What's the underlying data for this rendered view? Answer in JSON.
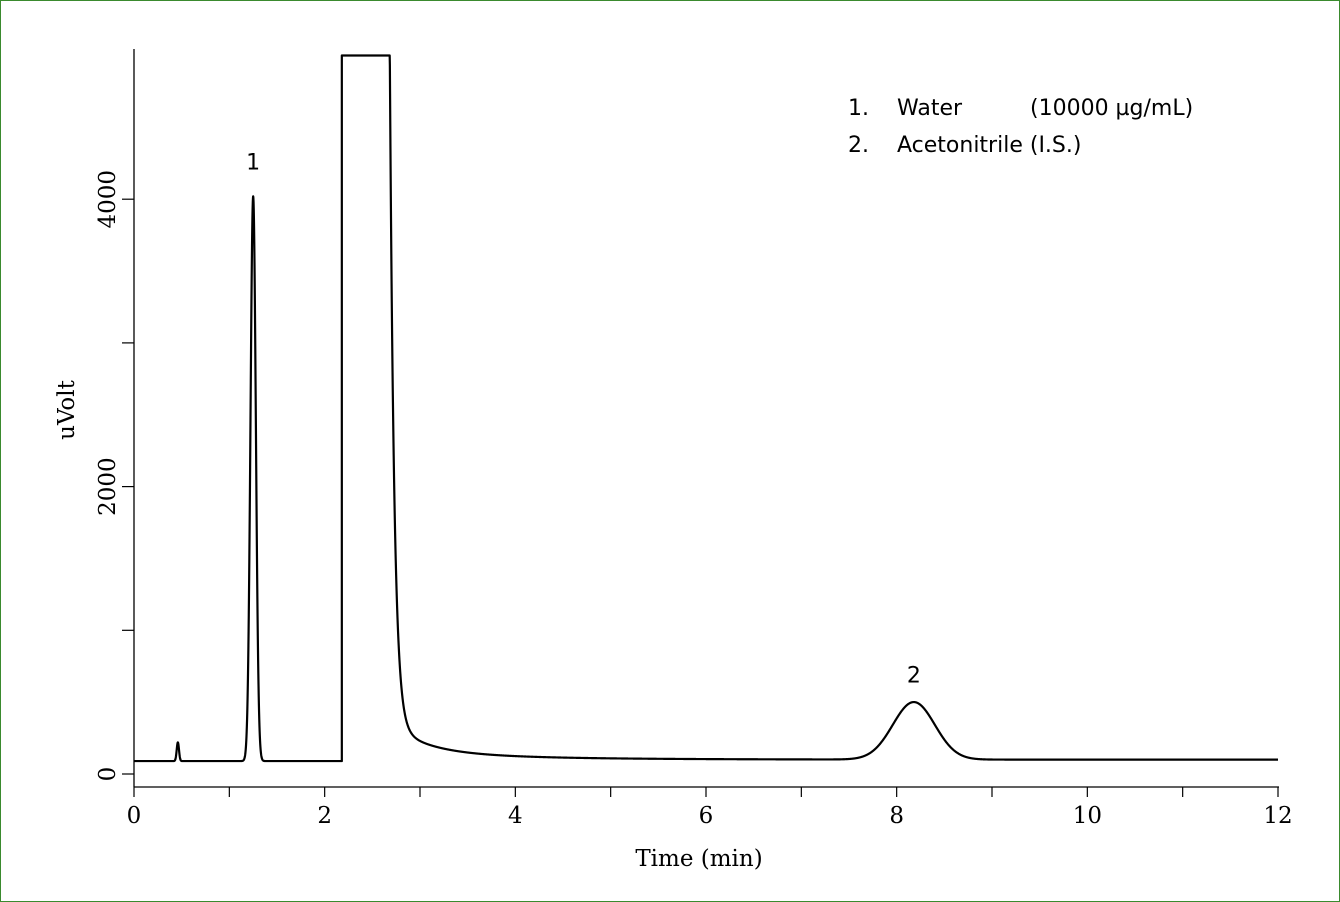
{
  "colors": {
    "frame": "#3a8a2e",
    "trace": "#000000",
    "background": "#ffffff"
  },
  "chart_data": {
    "type": "line",
    "title": "",
    "xlabel": "Time (min)",
    "ylabel": "uVolt",
    "xlim": [
      0,
      12
    ],
    "ylim": [
      -150,
      5000
    ],
    "x_ticks_labeled": [
      "0",
      "2",
      "4",
      "6",
      "8",
      "10",
      "12"
    ],
    "x_ticks_labeled_values": [
      0,
      2,
      4,
      6,
      8,
      10,
      12
    ],
    "x_ticks_minor_values": [
      1,
      3,
      5,
      7,
      9,
      11
    ],
    "y_ticks_labeled": [
      "0",
      "2000",
      "4000"
    ],
    "y_ticks_labeled_values": [
      0,
      2000,
      4000
    ],
    "y_ticks_minor_values": [
      1000,
      3000
    ],
    "grid": false,
    "legend_position": "top-right",
    "legend": [
      {
        "number": "1.",
        "name": "Water",
        "detail": "(10000 µg/mL)"
      },
      {
        "number": "2.",
        "name": "Acetonitrile (I.S.)",
        "detail": ""
      }
    ],
    "peak_labels": [
      {
        "label": "1",
        "x": 1.25,
        "y": 4150
      },
      {
        "label": "2",
        "x": 8.18,
        "y": 580
      }
    ],
    "series": [
      {
        "baseline": 90,
        "tail_baseline": 100,
        "peaks": [
          {
            "center": 0.46,
            "height": 130,
            "width": 0.012
          },
          {
            "center": 1.25,
            "height": 3930,
            "width": 0.028
          },
          {
            "center": 8.18,
            "height": 400,
            "width": 0.22
          }
        ],
        "solvent_peak": {
          "start": 2.18,
          "end": 2.68,
          "top": 5000
        }
      }
    ]
  }
}
